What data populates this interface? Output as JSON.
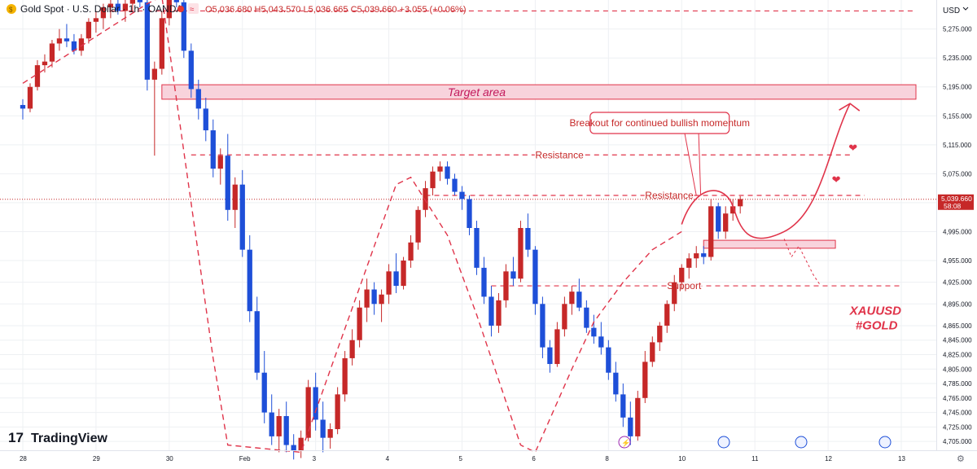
{
  "header": {
    "symbol_title": "Gold Spot · U.S. Dollar · 1h · OANDA",
    "ohlc": "O5,036.680 H5,043.570 L5,036.665 C5,039.660 +3.055 (+0.06%)"
  },
  "axis": {
    "currency": "USD",
    "price_label": "5,039.660",
    "countdown": "58:08"
  },
  "logo": {
    "text": "TradingView"
  },
  "colors": {
    "up": "#c62828",
    "down": "#1e4fd8",
    "annotation": "#e0344a",
    "zone_fill": "#f8d3dc",
    "grid": "#eef0f3"
  },
  "chart_data": {
    "type": "candlestick",
    "symbol": "XAUUSD",
    "timeframe": "1h",
    "y_axis": {
      "min": 4695,
      "max": 5305,
      "tick_values": [
        5275,
        5235,
        5195,
        5155,
        5115,
        5075,
        5035,
        4995,
        4955,
        4925,
        4895,
        4865,
        4845,
        4825,
        4805,
        4785,
        4765,
        4745,
        4725,
        4705
      ],
      "tick_labels": [
        "5,275.000",
        "5,235.000",
        "5,195.000",
        "5,155.000",
        "5,115.000",
        "5,075.000",
        "5,035.000",
        "4,995.000",
        "4,955.000",
        "4,925.000",
        "4,895.000",
        "4,865.000",
        "4,845.000",
        "4,825.000",
        "4,805.000",
        "4,785.000",
        "4,765.000",
        "4,745.000",
        "4,725.000",
        "4,705.000"
      ]
    },
    "x_axis": {
      "min": -2,
      "max": 122,
      "tick_values": [
        0,
        10,
        20,
        30,
        40,
        50,
        60,
        70,
        80,
        90,
        100,
        110,
        120
      ],
      "tick_labels": [
        "28",
        "29",
        "30",
        "Feb",
        "3",
        "4",
        "5",
        "6",
        "8",
        "10",
        "11",
        "12",
        "13"
      ]
    },
    "last_price": 5039.66,
    "candles": [
      [
        5170,
        5178,
        5150,
        5165
      ],
      [
        5165,
        5200,
        5160,
        5195
      ],
      [
        5195,
        5232,
        5190,
        5225
      ],
      [
        5225,
        5240,
        5215,
        5230
      ],
      [
        5230,
        5260,
        5222,
        5255
      ],
      [
        5255,
        5275,
        5245,
        5262
      ],
      [
        5262,
        5282,
        5250,
        5258
      ],
      [
        5258,
        5268,
        5240,
        5245
      ],
      [
        5245,
        5268,
        5238,
        5262
      ],
      [
        5262,
        5290,
        5255,
        5285
      ],
      [
        5285,
        5300,
        5270,
        5290
      ],
      [
        5290,
        5310,
        5275,
        5305
      ],
      [
        5305,
        5320,
        5290,
        5310
      ],
      [
        5310,
        5330,
        5295,
        5300
      ],
      [
        5300,
        5320,
        5285,
        5310
      ],
      [
        5310,
        5330,
        5300,
        5325
      ],
      [
        5325,
        5340,
        5305,
        5312
      ],
      [
        5312,
        5330,
        5190,
        5205
      ],
      [
        5205,
        5230,
        5100,
        5220
      ],
      [
        5220,
        5300,
        5212,
        5290
      ],
      [
        5290,
        5350,
        5280,
        5340
      ],
      [
        5340,
        5360,
        5305,
        5312
      ],
      [
        5312,
        5330,
        5235,
        5245
      ],
      [
        5245,
        5255,
        5180,
        5192
      ],
      [
        5192,
        5205,
        5150,
        5165
      ],
      [
        5165,
        5180,
        5120,
        5135
      ],
      [
        5135,
        5150,
        5070,
        5082
      ],
      [
        5082,
        5110,
        5060,
        5100
      ],
      [
        5100,
        5130,
        5010,
        5025
      ],
      [
        5025,
        5070,
        5000,
        5060
      ],
      [
        5060,
        5080,
        4960,
        4970
      ],
      [
        4970,
        4990,
        4870,
        4885
      ],
      [
        4885,
        4905,
        4790,
        4800
      ],
      [
        4800,
        4830,
        4730,
        4745
      ],
      [
        4745,
        4770,
        4700,
        4712
      ],
      [
        4712,
        4750,
        4690,
        4740
      ],
      [
        4740,
        4760,
        4690,
        4700
      ],
      [
        4700,
        4715,
        4680,
        4692
      ],
      [
        4692,
        4720,
        4682,
        4710
      ],
      [
        4710,
        4790,
        4705,
        4780
      ],
      [
        4780,
        4800,
        4720,
        4735
      ],
      [
        4735,
        4760,
        4690,
        4710
      ],
      [
        4710,
        4730,
        4695,
        4722
      ],
      [
        4722,
        4780,
        4715,
        4770
      ],
      [
        4770,
        4830,
        4760,
        4820
      ],
      [
        4820,
        4860,
        4810,
        4845
      ],
      [
        4845,
        4900,
        4835,
        4890
      ],
      [
        4890,
        4930,
        4870,
        4915
      ],
      [
        4915,
        4925,
        4880,
        4895
      ],
      [
        4895,
        4915,
        4870,
        4908
      ],
      [
        4908,
        4950,
        4895,
        4940
      ],
      [
        4940,
        4965,
        4910,
        4920
      ],
      [
        4920,
        4960,
        4915,
        4955
      ],
      [
        4955,
        4990,
        4945,
        4980
      ],
      [
        4980,
        5030,
        4970,
        5025
      ],
      [
        5025,
        5065,
        5015,
        5055
      ],
      [
        5055,
        5085,
        5045,
        5078
      ],
      [
        5078,
        5092,
        5065,
        5085
      ],
      [
        5085,
        5092,
        5060,
        5068
      ],
      [
        5068,
        5075,
        5045,
        5050
      ],
      [
        5050,
        5058,
        5025,
        5040
      ],
      [
        5040,
        5045,
        4990,
        5000
      ],
      [
        5000,
        5010,
        4935,
        4945
      ],
      [
        4945,
        4960,
        4895,
        4905
      ],
      [
        4905,
        4920,
        4850,
        4865
      ],
      [
        4865,
        4910,
        4855,
        4900
      ],
      [
        4900,
        4950,
        4890,
        4940
      ],
      [
        4940,
        4960,
        4920,
        4930
      ],
      [
        4930,
        5010,
        4925,
        5000
      ],
      [
        5000,
        5020,
        4960,
        4970
      ],
      [
        4970,
        4975,
        4880,
        4895
      ],
      [
        4895,
        4905,
        4820,
        4835
      ],
      [
        4835,
        4845,
        4800,
        4812
      ],
      [
        4812,
        4870,
        4808,
        4860
      ],
      [
        4860,
        4905,
        4850,
        4895
      ],
      [
        4895,
        4920,
        4880,
        4912
      ],
      [
        4912,
        4930,
        4885,
        4890
      ],
      [
        4890,
        4900,
        4855,
        4862
      ],
      [
        4862,
        4880,
        4840,
        4850
      ],
      [
        4850,
        4870,
        4825,
        4835
      ],
      [
        4835,
        4845,
        4790,
        4800
      ],
      [
        4800,
        4815,
        4760,
        4770
      ],
      [
        4770,
        4785,
        4725,
        4738
      ],
      [
        4738,
        4760,
        4700,
        4712
      ],
      [
        4712,
        4775,
        4706,
        4765
      ],
      [
        4765,
        4830,
        4758,
        4815
      ],
      [
        4815,
        4850,
        4808,
        4842
      ],
      [
        4842,
        4870,
        4830,
        4865
      ],
      [
        4865,
        4900,
        4855,
        4895
      ],
      [
        4895,
        4935,
        4885,
        4925
      ],
      [
        4925,
        4950,
        4915,
        4945
      ],
      [
        4945,
        4965,
        4930,
        4958
      ],
      [
        4958,
        4975,
        4945,
        4965
      ],
      [
        4965,
        4975,
        4950,
        4960
      ],
      [
        4960,
        5040,
        4955,
        5030
      ],
      [
        5030,
        5035,
        4985,
        4995
      ],
      [
        4995,
        5030,
        4985,
        5020
      ],
      [
        5020,
        5040,
        5010,
        5030
      ],
      [
        5030,
        5044,
        5020,
        5040
      ]
    ],
    "levels": [
      {
        "label": "Resistance",
        "price": 5101
      },
      {
        "label": "Resistance",
        "price": 5045
      },
      {
        "label": "Support",
        "price": 4920
      },
      {
        "label": "",
        "price": 5300
      }
    ],
    "zones": [
      {
        "label": "Target area",
        "from": 5178,
        "to": 5198
      },
      {
        "label": "",
        "from": 4972,
        "to": 4983
      }
    ],
    "annotations": [
      "Breakout for continued bullish momentum",
      "XAUUSD",
      "#GOLD"
    ]
  }
}
